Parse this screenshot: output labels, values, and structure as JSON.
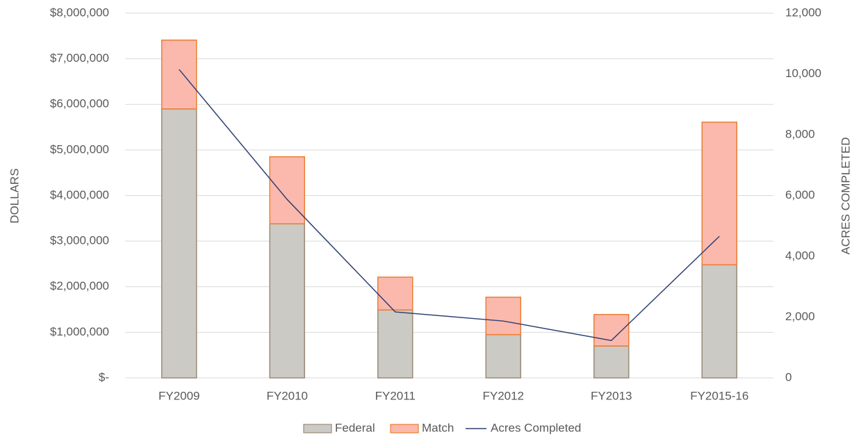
{
  "chart_data": {
    "type": "bar",
    "categories": [
      "FY2009",
      "FY2010",
      "FY2011",
      "FY2012",
      "FY2013",
      "FY2015-16"
    ],
    "y_label": "DOLLARS",
    "y2_label": "ACRES COMPLETED",
    "series": [
      {
        "name": "Federal",
        "color": "#cbcac4",
        "stroke": "#9a8a78",
        "type": "bar",
        "values": [
          5900000,
          3380000,
          1490000,
          950000,
          700000,
          2480000
        ]
      },
      {
        "name": "Match",
        "color": "#fbb9ad",
        "stroke": "#ed7d31",
        "type": "bar",
        "values": [
          1510000,
          1470000,
          720000,
          820000,
          690000,
          3130000
        ]
      },
      {
        "name": "Acres Completed",
        "color": "#2f3f73",
        "type": "line",
        "axis": "y2",
        "values": [
          10150,
          5870,
          2170,
          1870,
          1230,
          4660
        ]
      }
    ],
    "ylim": [
      0,
      8000000
    ],
    "yticks": [
      {
        "value": 0,
        "label": "$-"
      },
      {
        "value": 1000000,
        "label": "$1,000,000"
      },
      {
        "value": 2000000,
        "label": "$2,000,000"
      },
      {
        "value": 3000000,
        "label": "$3,000,000"
      },
      {
        "value": 4000000,
        "label": "$4,000,000"
      },
      {
        "value": 5000000,
        "label": "$5,000,000"
      },
      {
        "value": 6000000,
        "label": "$6,000,000"
      },
      {
        "value": 7000000,
        "label": "$7,000,000"
      },
      {
        "value": 8000000,
        "label": "$8,000,000"
      }
    ],
    "y2lim": [
      0,
      12000
    ],
    "y2ticks": [
      0,
      {
        "value": 2000,
        "label": "2,000"
      },
      {
        "value": 4000,
        "label": "4,000"
      },
      {
        "value": 6000,
        "label": "6,000"
      },
      {
        "value": 8000,
        "label": "8,000"
      },
      {
        "value": 10000,
        "label": "10,000"
      },
      {
        "value": 12000,
        "label": "12,000"
      }
    ],
    "grid": true,
    "legend": "bottom"
  }
}
